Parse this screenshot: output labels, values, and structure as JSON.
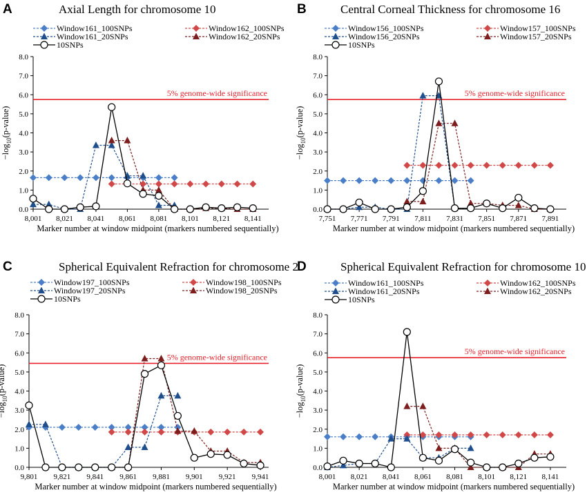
{
  "colors": {
    "w100_a": "#4a7fc8",
    "w100_b": "#d14848",
    "w20_a": "#1f4e8c",
    "w20_b": "#7d1d1d",
    "snp10": "#000000",
    "threshold": "#e8202a"
  },
  "shared": {
    "xlabel": "Marker number at window midpoint (markers numbered sequentially)",
    "ylabel_prefix": "−log",
    "ylabel_sub": "10",
    "ylabel_suffix": "(p-value)",
    "threshold_label": "5% genome-wide significance"
  },
  "chart_data": [
    {
      "letter": "A",
      "type": "line",
      "title": "Axial Length for chromosome 10",
      "xlim": [
        8001,
        8151
      ],
      "ylim": [
        0,
        8
      ],
      "xticks": [
        "8,001",
        "8,021",
        "8,041",
        "8,061",
        "8,081",
        "8,101",
        "8,121",
        "8,141"
      ],
      "yticks": [
        "0.0",
        "1.0",
        "2.0",
        "3.0",
        "4.0",
        "5.0",
        "6.0",
        "7.0",
        "8.0"
      ],
      "threshold": 5.75,
      "series": [
        {
          "name": "Window161_100SNPs",
          "key": "w100_a",
          "marker": "diamond",
          "x": [
            8001,
            8011,
            8021,
            8031,
            8041,
            8051,
            8061,
            8071,
            8081,
            8091
          ],
          "values": [
            1.65,
            1.65,
            1.65,
            1.65,
            1.65,
            1.65,
            1.65,
            1.65,
            1.65,
            1.65
          ]
        },
        {
          "name": "Window162_100SNPs",
          "key": "w100_b",
          "marker": "diamond",
          "x": [
            8051,
            8061,
            8071,
            8081,
            8091,
            8101,
            8111,
            8121,
            8131,
            8141
          ],
          "values": [
            1.32,
            1.32,
            1.32,
            1.32,
            1.32,
            1.32,
            1.32,
            1.32,
            1.32,
            1.32
          ]
        },
        {
          "name": "Window161_20SNPs",
          "key": "w20_a",
          "marker": "triangle",
          "x": [
            8001,
            8011,
            8021,
            8031,
            8041,
            8051,
            8061,
            8071,
            8081,
            8091
          ],
          "values": [
            0.25,
            0.25,
            0,
            0,
            3.35,
            3.35,
            1.75,
            1.75,
            0.2,
            0.2
          ]
        },
        {
          "name": "Window162_20SNPs",
          "key": "w20_b",
          "marker": "triangle",
          "x": [
            8051,
            8061,
            8071,
            8081,
            8091,
            8101,
            8111,
            8121,
            8131,
            8141
          ],
          "values": [
            3.6,
            3.6,
            1.0,
            1.0,
            0,
            0,
            0.05,
            0.05,
            0,
            0
          ]
        },
        {
          "name": "10SNPs",
          "key": "snp10",
          "marker": "circle",
          "x": [
            8001,
            8011,
            8021,
            8031,
            8041,
            8051,
            8061,
            8071,
            8081,
            8091,
            8101,
            8111,
            8121,
            8131,
            8141
          ],
          "values": [
            0.55,
            0,
            0,
            0.1,
            0.15,
            5.35,
            1.35,
            0.8,
            0.7,
            0,
            0,
            0.1,
            0.05,
            0.1,
            0.05
          ]
        }
      ]
    },
    {
      "letter": "B",
      "type": "line",
      "title": "Central Corneal Thickness for chromosome 16",
      "xlim": [
        7751,
        7901
      ],
      "ylim": [
        0,
        8
      ],
      "xticks": [
        "7,751",
        "7,771",
        "7,791",
        "7,811",
        "7,831",
        "7,851",
        "7,871",
        "7,891"
      ],
      "yticks": [
        "0.0",
        "1.0",
        "2.0",
        "3.0",
        "4.0",
        "5.0",
        "6.0",
        "7.0",
        "8.0"
      ],
      "threshold": 5.75,
      "series": [
        {
          "name": "Window156_100SNPs",
          "key": "w100_a",
          "marker": "diamond",
          "x": [
            7751,
            7761,
            7771,
            7781,
            7791,
            7801,
            7811,
            7821,
            7831,
            7841
          ],
          "values": [
            1.5,
            1.5,
            1.5,
            1.5,
            1.5,
            1.5,
            1.5,
            1.5,
            1.5,
            1.5
          ]
        },
        {
          "name": "Window157_100SNPs",
          "key": "w100_b",
          "marker": "diamond",
          "x": [
            7801,
            7811,
            7821,
            7831,
            7841,
            7851,
            7861,
            7871,
            7881,
            7891
          ],
          "values": [
            2.3,
            2.3,
            2.3,
            2.3,
            2.3,
            2.3,
            2.3,
            2.3,
            2.3,
            2.3
          ]
        },
        {
          "name": "Window156_20SNPs",
          "key": "w20_a",
          "marker": "triangle",
          "x": [
            7751,
            7761,
            7771,
            7781,
            7791,
            7801,
            7811,
            7821,
            7831,
            7841
          ],
          "values": [
            0,
            0,
            0.1,
            0.1,
            0,
            0,
            5.95,
            5.95,
            0.05,
            0.05
          ]
        },
        {
          "name": "Window157_20SNPs",
          "key": "w20_b",
          "marker": "triangle",
          "x": [
            7801,
            7811,
            7821,
            7831,
            7841,
            7851,
            7861,
            7871,
            7881,
            7891
          ],
          "values": [
            0.4,
            0.4,
            4.5,
            4.5,
            0.3,
            0.3,
            0.2,
            0.2,
            0,
            0
          ]
        },
        {
          "name": "10SNPs",
          "key": "snp10",
          "marker": "circle",
          "x": [
            7751,
            7761,
            7771,
            7781,
            7791,
            7801,
            7811,
            7821,
            7831,
            7841,
            7851,
            7861,
            7871,
            7881,
            7891
          ],
          "values": [
            0,
            0,
            0.35,
            0,
            0,
            0.1,
            0.95,
            6.7,
            0.05,
            0.05,
            0.3,
            0.05,
            0.6,
            0.05,
            0
          ]
        }
      ]
    },
    {
      "letter": "C",
      "type": "line",
      "title": "Spherical Equivalent Refraction for chromosome 2",
      "xlim": [
        9801,
        9946
      ],
      "ylim": [
        0,
        8
      ],
      "xticks": [
        "9,801",
        "9,821",
        "9,841",
        "9,861",
        "9,881",
        "9,901",
        "9,921",
        "9,941"
      ],
      "yticks": [
        "0.0",
        "1.0",
        "2.0",
        "3.0",
        "4.0",
        "5.0",
        "6.0",
        "7.0",
        "8.0"
      ],
      "threshold": 5.45,
      "series": [
        {
          "name": "Window197_100SNPs",
          "key": "w100_a",
          "marker": "diamond",
          "x": [
            9801,
            9811,
            9821,
            9831,
            9841,
            9851,
            9861,
            9871,
            9881,
            9891
          ],
          "values": [
            2.1,
            2.1,
            2.1,
            2.1,
            2.1,
            2.1,
            2.1,
            2.1,
            2.1,
            2.1
          ]
        },
        {
          "name": "Window198_100SNPs",
          "key": "w100_b",
          "marker": "diamond",
          "x": [
            9851,
            9861,
            9871,
            9881,
            9891,
            9901,
            9911,
            9921,
            9931,
            9941
          ],
          "values": [
            1.85,
            1.85,
            1.85,
            1.85,
            1.85,
            1.85,
            1.85,
            1.85,
            1.85,
            1.85
          ]
        },
        {
          "name": "Window197_20SNPs",
          "key": "w20_a",
          "marker": "triangle",
          "x": [
            9801,
            9811,
            9821,
            9831,
            9841,
            9851,
            9861,
            9871,
            9881,
            9891
          ],
          "values": [
            2.25,
            2.25,
            0,
            0,
            0,
            0,
            1.05,
            1.05,
            3.75,
            3.75
          ]
        },
        {
          "name": "Window198_20SNPs",
          "key": "w20_b",
          "marker": "triangle",
          "x": [
            9851,
            9861,
            9871,
            9881,
            9891,
            9901,
            9911,
            9921,
            9931,
            9941
          ],
          "values": [
            0,
            0,
            5.7,
            5.7,
            1.9,
            1.9,
            0.85,
            0.85,
            0.25,
            0.25
          ]
        },
        {
          "name": "10SNPs",
          "key": "snp10",
          "marker": "circle",
          "x": [
            9801,
            9811,
            9821,
            9831,
            9841,
            9851,
            9861,
            9871,
            9881,
            9891,
            9901,
            9911,
            9921,
            9931,
            9941
          ],
          "values": [
            3.25,
            0,
            0,
            0,
            0,
            0,
            0,
            4.9,
            5.35,
            2.7,
            0.5,
            0.7,
            0.65,
            0.2,
            0.1
          ]
        }
      ]
    },
    {
      "letter": "D",
      "type": "line",
      "title": "Spherical Equivalent Refraction for chromosome 10",
      "xlim": [
        8001,
        8151
      ],
      "ylim": [
        0,
        8
      ],
      "xticks": [
        "8,001",
        "8,021",
        "8,041",
        "8,061",
        "8,081",
        "8,101",
        "8,121",
        "8,141"
      ],
      "yticks": [
        "0.0",
        "1.0",
        "2.0",
        "3.0",
        "4.0",
        "5.0",
        "6.0",
        "7.0",
        "8.0"
      ],
      "threshold": 5.75,
      "series": [
        {
          "name": "Window161_100SNPs",
          "key": "w100_a",
          "marker": "diamond",
          "x": [
            8001,
            8011,
            8021,
            8031,
            8041,
            8051,
            8061,
            8071,
            8081,
            8091
          ],
          "values": [
            1.6,
            1.6,
            1.6,
            1.6,
            1.6,
            1.6,
            1.6,
            1.6,
            1.6,
            1.6
          ]
        },
        {
          "name": "Window162_100SNPs",
          "key": "w100_b",
          "marker": "diamond",
          "x": [
            8051,
            8061,
            8071,
            8081,
            8091,
            8101,
            8111,
            8121,
            8131,
            8141
          ],
          "values": [
            1.7,
            1.7,
            1.7,
            1.7,
            1.7,
            1.7,
            1.7,
            1.7,
            1.7,
            1.7
          ]
        },
        {
          "name": "Window161_20SNPs",
          "key": "w20_a",
          "marker": "triangle",
          "x": [
            8001,
            8011,
            8021,
            8031,
            8041,
            8051,
            8061,
            8071,
            8081,
            8091
          ],
          "values": [
            0,
            0.1,
            0.2,
            0.2,
            1.5,
            1.5,
            0.5,
            0.5,
            1.0,
            1.0
          ]
        },
        {
          "name": "Window162_20SNPs",
          "key": "w20_b",
          "marker": "triangle",
          "x": [
            8051,
            8061,
            8071,
            8081,
            8091,
            8101,
            8111,
            8121,
            8131,
            8141
          ],
          "values": [
            3.2,
            3.2,
            1.0,
            1.0,
            0,
            0,
            0,
            0,
            0.7,
            0.7
          ]
        },
        {
          "name": "10SNPs",
          "key": "snp10",
          "marker": "circle",
          "x": [
            8001,
            8011,
            8021,
            8031,
            8041,
            8051,
            8061,
            8071,
            8081,
            8091,
            8101,
            8111,
            8121,
            8131,
            8141
          ],
          "values": [
            0.05,
            0.35,
            0.2,
            0.2,
            0,
            7.1,
            0.5,
            0.35,
            0.95,
            0.25,
            0,
            0,
            0.2,
            0.5,
            0.55
          ]
        }
      ]
    }
  ]
}
